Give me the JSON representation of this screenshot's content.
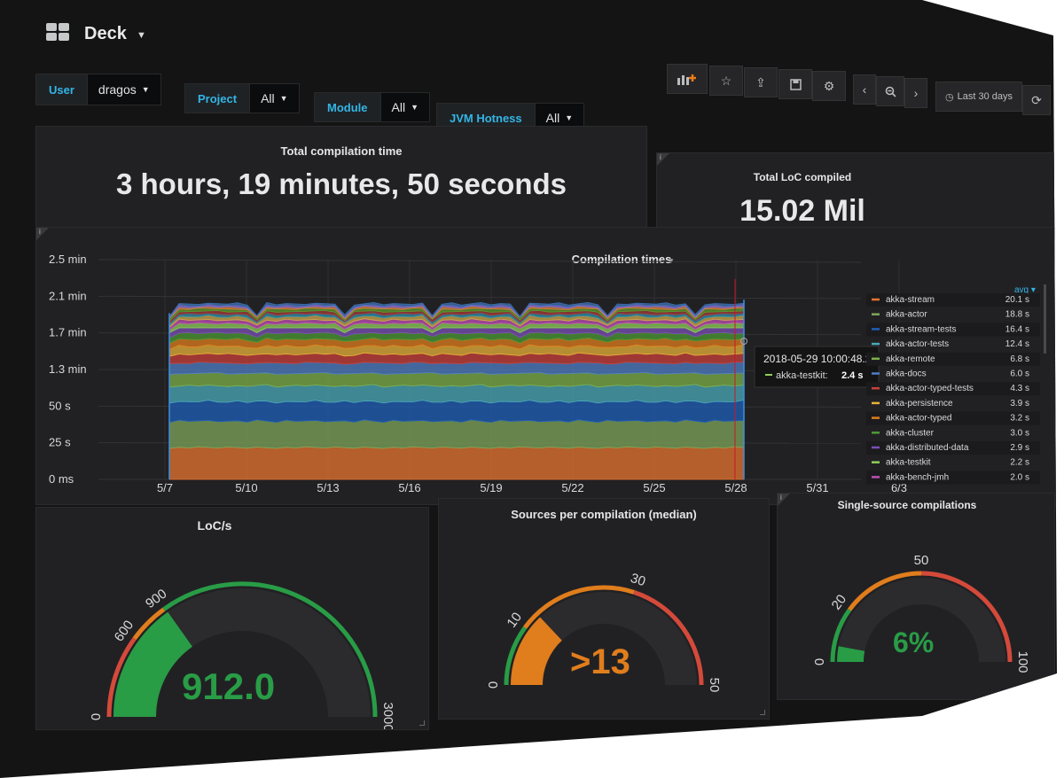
{
  "header": {
    "title": "Deck",
    "logo_icon": "grid-icon"
  },
  "variables": [
    {
      "label": "User",
      "value": "dragos"
    },
    {
      "label": "Project",
      "value": "All"
    },
    {
      "label": "Module",
      "value": "All"
    },
    {
      "label": "JVM Hotness",
      "value": "All"
    }
  ],
  "toolbar": {
    "time_range": "Last 30 days",
    "icons": [
      "add-panel-icon",
      "star-icon",
      "share-icon",
      "save-icon",
      "gear-icon",
      "chevron-left-icon",
      "zoom-out-icon",
      "chevron-right-icon",
      "clock-icon",
      "refresh-icon"
    ]
  },
  "stats": {
    "total_time": {
      "title": "Total compilation time",
      "value": "3 hours, 19 minutes, 50 seconds"
    },
    "total_loc": {
      "title": "Total LoC compiled",
      "value": "15.02 Mil"
    }
  },
  "gauges": [
    {
      "title": "LoC/s",
      "value": "912.0",
      "color": "#299c46",
      "ticks": [
        "0",
        "600",
        "900",
        "3000"
      ]
    },
    {
      "title": "Sources per compilation (median)",
      "value": ">13",
      "color": "#e07d1c",
      "ticks": [
        "0",
        "10",
        "30",
        "50"
      ]
    },
    {
      "title": "Single-source compilations",
      "value": "6%",
      "color": "#299c46",
      "ticks": [
        "0",
        "20",
        "50",
        "100"
      ]
    }
  ],
  "chart_data": {
    "type": "area",
    "title": "Compilation times",
    "x": [
      "5/7",
      "5/10",
      "5/13",
      "5/16",
      "5/19",
      "5/22",
      "5/25",
      "5/28",
      "5/31",
      "6/3"
    ],
    "y_ticks": [
      "0 ms",
      "25 s",
      "50 s",
      "1.3 min",
      "1.7 min",
      "2.1 min",
      "2.5 min"
    ],
    "legend_header": "avg",
    "series": [
      {
        "name": "akka-stream",
        "avg": "20.1 s",
        "color": "#e5742f"
      },
      {
        "name": "akka-actor",
        "avg": "18.8 s",
        "color": "#7ea65a"
      },
      {
        "name": "akka-stream-tests",
        "avg": "16.4 s",
        "color": "#1f5fb8"
      },
      {
        "name": "akka-actor-tests",
        "avg": "12.4 s",
        "color": "#4aa9b8"
      },
      {
        "name": "akka-remote",
        "avg": "6.8 s",
        "color": "#7db04a"
      },
      {
        "name": "akka-docs",
        "avg": "6.0 s",
        "color": "#4f7fc4"
      },
      {
        "name": "akka-actor-typed-tests",
        "avg": "4.3 s",
        "color": "#c9403a"
      },
      {
        "name": "akka-persistence",
        "avg": "3.9 s",
        "color": "#e8b238"
      },
      {
        "name": "akka-actor-typed",
        "avg": "3.2 s",
        "color": "#e07d1c"
      },
      {
        "name": "akka-cluster",
        "avg": "3.0 s",
        "color": "#4c9a34"
      },
      {
        "name": "akka-distributed-data",
        "avg": "2.9 s",
        "color": "#7b4fb5"
      },
      {
        "name": "akka-testkit",
        "avg": "2.2 s",
        "color": "#8fcf5a"
      },
      {
        "name": "akka-bench-jmh",
        "avg": "2.0 s",
        "color": "#c04fb5"
      }
    ],
    "tooltip": {
      "time": "2018-05-29 10:00:48.213",
      "series": "akka-testkit:",
      "value": "2.4 s"
    }
  }
}
